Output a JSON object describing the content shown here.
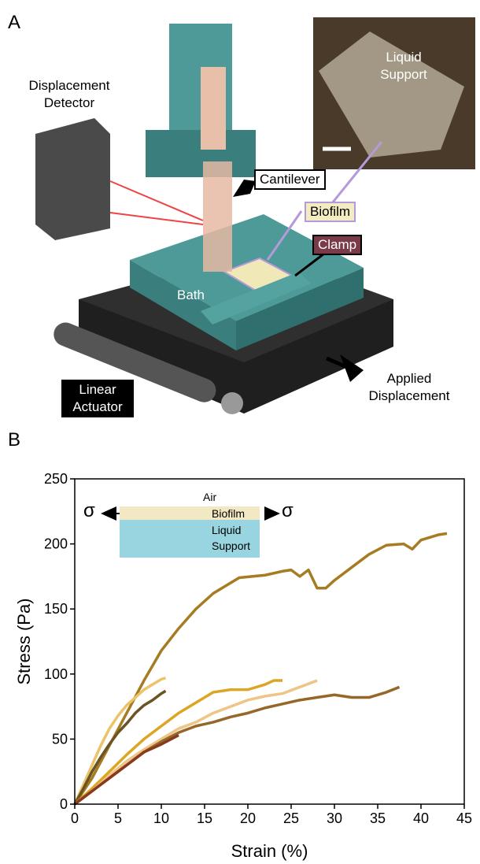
{
  "panel_a": {
    "label": "A",
    "detector": "Displacement Detector",
    "photo_label": "Liquid Support",
    "cantilever": "Cantilever",
    "biofilm": "Biofilm",
    "clamp": "Clamp",
    "bath": "Bath",
    "actuator": "Linear Actuator",
    "displacement": "Applied Displacement"
  },
  "chart_data": {
    "type": "line",
    "panel_label": "B",
    "x_label": "Strain (%)",
    "y_label": "Stress (Pa)",
    "xlim": [
      0,
      45
    ],
    "xticks": [
      0,
      5,
      10,
      15,
      20,
      25,
      30,
      35,
      40,
      45
    ],
    "ylim": [
      0,
      250
    ],
    "yticks": [
      0,
      50,
      100,
      150,
      200,
      250
    ],
    "inset": {
      "top": "Air",
      "middle": "Biofilm",
      "bottom": "Liquid Support",
      "left_symbol": "σ",
      "right_symbol": "σ"
    },
    "series": [
      {
        "color": "#a67c22",
        "x": [
          0,
          2,
          4,
          6,
          8,
          10,
          12,
          14,
          16,
          18,
          19,
          22,
          24,
          25,
          26,
          27,
          28,
          29,
          30,
          32,
          34,
          36,
          38,
          39,
          40,
          42,
          43
        ],
        "values": [
          0,
          20,
          45,
          70,
          95,
          118,
          135,
          150,
          162,
          170,
          174,
          176,
          179,
          180,
          175,
          180,
          166,
          166,
          172,
          182,
          192,
          199,
          200,
          196,
          203,
          207,
          208
        ]
      },
      {
        "color": "#ebc36a",
        "x": [
          0,
          1,
          2,
          3,
          4,
          5,
          6,
          7,
          8,
          9,
          10,
          10.5
        ],
        "values": [
          0,
          15,
          30,
          45,
          58,
          68,
          76,
          82,
          88,
          92,
          96,
          97
        ]
      },
      {
        "color": "#6b5324",
        "x": [
          0,
          1,
          2,
          3,
          4,
          5,
          6,
          7,
          8,
          9,
          10,
          10.5
        ],
        "values": [
          0,
          12,
          25,
          36,
          46,
          55,
          62,
          70,
          76,
          80,
          85,
          87
        ]
      },
      {
        "color": "#dca524",
        "x": [
          0,
          2,
          4,
          6,
          8,
          10,
          12,
          14,
          16,
          18,
          20,
          22,
          23,
          24
        ],
        "values": [
          0,
          12,
          25,
          38,
          50,
          60,
          70,
          78,
          86,
          88,
          88,
          92,
          95,
          95
        ]
      },
      {
        "color": "#eec487",
        "x": [
          0,
          2,
          4,
          6,
          8,
          10,
          12,
          14,
          16,
          18,
          20,
          22,
          24,
          26,
          28
        ],
        "values": [
          0,
          10,
          22,
          33,
          42,
          50,
          58,
          63,
          70,
          75,
          80,
          83,
          85,
          90,
          95
        ]
      },
      {
        "color": "#96672a",
        "x": [
          0,
          2,
          4,
          6,
          8,
          10,
          12,
          14,
          16,
          18,
          20,
          22,
          24,
          26,
          28,
          30,
          32,
          34,
          36,
          37.5
        ],
        "values": [
          0,
          10,
          20,
          30,
          40,
          48,
          55,
          60,
          63,
          67,
          70,
          74,
          77,
          80,
          82,
          84,
          82,
          82,
          86,
          90
        ]
      },
      {
        "color": "#8a3a1c",
        "x": [
          0,
          2,
          4,
          6,
          8,
          10,
          12
        ],
        "values": [
          0,
          10,
          20,
          30,
          40,
          46,
          53
        ]
      }
    ]
  }
}
